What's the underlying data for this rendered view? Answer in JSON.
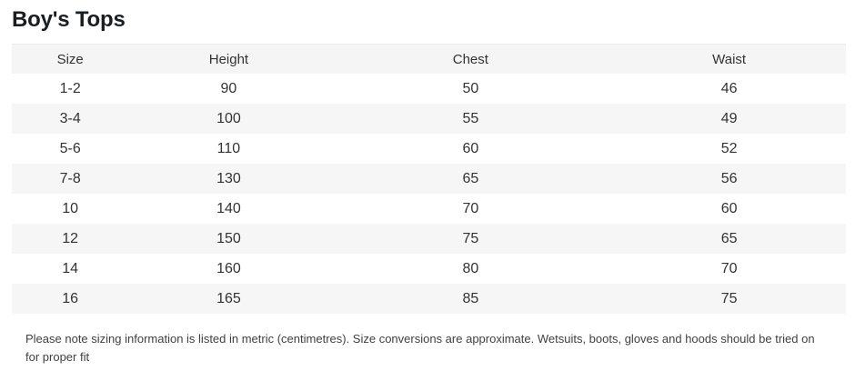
{
  "title": "Boy's Tops",
  "table": {
    "headers": [
      "Size",
      "Height",
      "Chest",
      "Waist"
    ],
    "rows": [
      {
        "size": "1-2",
        "height": "90",
        "chest": "50",
        "waist": "46"
      },
      {
        "size": "3-4",
        "height": "100",
        "chest": "55",
        "waist": "49"
      },
      {
        "size": "5-6",
        "height": "110",
        "chest": "60",
        "waist": "52"
      },
      {
        "size": "7-8",
        "height": "130",
        "chest": "65",
        "waist": "56"
      },
      {
        "size": "10",
        "height": "140",
        "chest": "70",
        "waist": "60"
      },
      {
        "size": "12",
        "height": "150",
        "chest": "75",
        "waist": "65"
      },
      {
        "size": "14",
        "height": "160",
        "chest": "80",
        "waist": "70"
      },
      {
        "size": "16",
        "height": "165",
        "chest": "85",
        "waist": "75"
      }
    ]
  },
  "note": "Please note sizing information is listed in metric (centimetres). Size conversions are approximate. Wetsuits, boots, gloves and hoods should be tried on for proper fit",
  "colors": {
    "header_bg": "#f5f5f6",
    "stripe_bg": "#f6f6f7",
    "header_border": "#ebebeb",
    "title_text": "#1b1e21",
    "body_text": "#333333",
    "note_text": "#414141"
  }
}
